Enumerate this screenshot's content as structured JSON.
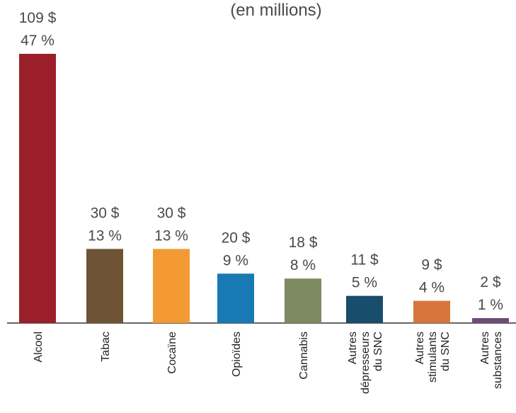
{
  "chart_data": {
    "type": "bar",
    "title": "",
    "subtitle": "(en millions)",
    "xlabel": "",
    "ylabel": "",
    "ylim": [
      0,
      109
    ],
    "grid": false,
    "legend": "none",
    "categories": [
      [
        "Alcool"
      ],
      [
        "Tabac"
      ],
      [
        "Cocaïne"
      ],
      [
        "Opioïdes"
      ],
      [
        "Cannabis"
      ],
      [
        "Autres",
        "dépresseurs",
        "du SNC"
      ],
      [
        "Autres",
        "stimulants",
        "du SNC"
      ],
      [
        "Autres",
        "substances"
      ]
    ],
    "values": [
      109,
      30,
      30,
      20,
      18,
      11,
      9,
      2
    ],
    "value_labels": [
      "109 $",
      "30 $",
      "30 $",
      "20 $",
      "18 $",
      "11 $",
      "9 $",
      "2 $"
    ],
    "percent_labels": [
      "47 %",
      "13 %",
      "13 %",
      "9 %",
      "8 %",
      "5 %",
      "4 %",
      "1 %"
    ],
    "colors": [
      "#9b1f2a",
      "#6e5335",
      "#f39a34",
      "#1879b4",
      "#7e8a62",
      "#184d6b",
      "#d6763a",
      "#6f4b78"
    ]
  }
}
